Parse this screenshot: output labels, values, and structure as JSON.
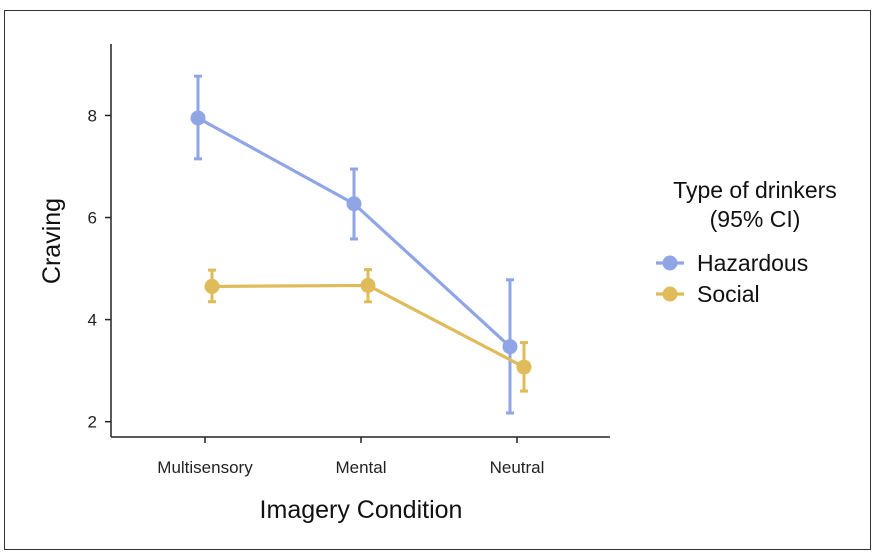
{
  "chart_data": {
    "type": "line",
    "xlabel": "Imagery Condition",
    "ylabel": "Craving",
    "categories": [
      "Multisensory",
      "Mental",
      "Neutral"
    ],
    "ylim": [
      1.7,
      9.4
    ],
    "yticks": [
      2,
      4,
      6,
      8
    ],
    "grid": false,
    "legend": {
      "title_line1": "Type of drinkers",
      "title_line2": "(95% CI)",
      "placement": "right"
    },
    "series": [
      {
        "name": "Hazardous",
        "color": "#8fa5e6",
        "values": [
          7.95,
          6.27,
          3.47
        ],
        "ci_low": [
          7.15,
          5.58,
          2.17
        ],
        "ci_high": [
          8.77,
          6.95,
          4.78
        ]
      },
      {
        "name": "Social",
        "color": "#dfbb5a",
        "values": [
          4.65,
          4.67,
          3.07
        ],
        "ci_low": [
          4.35,
          4.35,
          2.6
        ],
        "ci_high": [
          4.97,
          4.98,
          3.55
        ]
      }
    ]
  }
}
